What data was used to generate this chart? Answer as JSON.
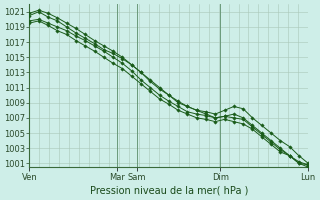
{
  "background_color": "#ceeee8",
  "grid_color_major": "#aac8b8",
  "grid_color_minor": "#c0ddd5",
  "line_color": "#1a5c1a",
  "xlabel": "Pression niveau de la mer( hPa )",
  "ylim": [
    1000.5,
    1022.0
  ],
  "yticks": [
    1001,
    1003,
    1005,
    1007,
    1009,
    1011,
    1013,
    1015,
    1017,
    1019,
    1021
  ],
  "xtick_day_positions": [
    0.0,
    0.315,
    0.385,
    0.685,
    1.0
  ],
  "xtick_day_labels": [
    "Ven",
    "Mar",
    "Sam",
    "Dim",
    "Lun"
  ],
  "lines": [
    {
      "y": [
        1020.5,
        1021.0,
        1020.3,
        1019.8,
        1019.0,
        1018.2,
        1017.5,
        1016.8,
        1016.0,
        1015.5,
        1014.8,
        1014.0,
        1013.0,
        1012.0,
        1011.0,
        1010.0,
        1009.0,
        1008.5,
        1008.0,
        1007.5,
        1007.0,
        1007.2,
        1007.5,
        1007.0,
        1006.0,
        1005.0,
        1004.0,
        1003.0,
        1002.0,
        1001.0,
        1000.5
      ]
    },
    {
      "y": [
        1020.8,
        1021.2,
        1020.8,
        1020.2,
        1019.5,
        1018.8,
        1018.0,
        1017.2,
        1016.5,
        1015.8,
        1015.0,
        1014.0,
        1013.0,
        1011.8,
        1010.8,
        1010.0,
        1009.2,
        1008.5,
        1008.0,
        1007.8,
        1007.5,
        1008.0,
        1008.5,
        1008.2,
        1007.0,
        1006.0,
        1005.0,
        1004.0,
        1003.2,
        1002.0,
        1001.0
      ]
    },
    {
      "y": [
        1019.8,
        1020.0,
        1019.5,
        1019.0,
        1018.5,
        1017.8,
        1017.2,
        1016.5,
        1015.8,
        1015.0,
        1014.2,
        1013.2,
        1012.0,
        1011.0,
        1010.0,
        1009.2,
        1008.5,
        1007.8,
        1007.5,
        1007.3,
        1007.0,
        1007.2,
        1007.0,
        1006.8,
        1005.8,
        1004.8,
        1003.8,
        1002.8,
        1002.0,
        1001.2,
        1000.8
      ]
    },
    {
      "y": [
        1019.5,
        1019.8,
        1019.2,
        1018.5,
        1018.0,
        1017.2,
        1016.5,
        1015.8,
        1015.0,
        1014.2,
        1013.5,
        1012.5,
        1011.5,
        1010.5,
        1009.5,
        1008.8,
        1008.0,
        1007.5,
        1007.0,
        1006.8,
        1006.5,
        1006.8,
        1006.5,
        1006.2,
        1005.5,
        1004.5,
        1003.5,
        1002.5,
        1002.0,
        1001.0,
        1000.8
      ]
    }
  ],
  "ylabel_fontsize": 6,
  "xlabel_fontsize": 7,
  "tick_fontsize": 6
}
